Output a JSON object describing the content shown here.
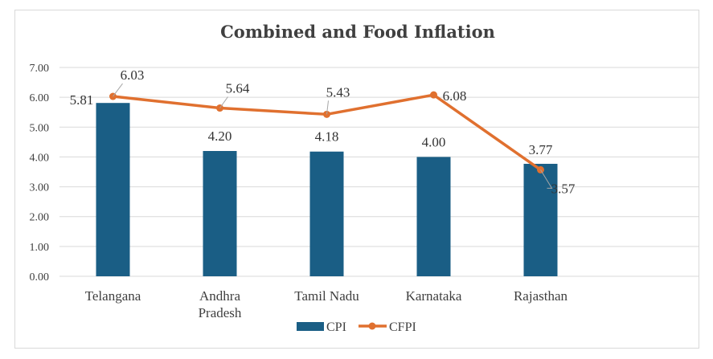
{
  "chart_data": {
    "type": "bar",
    "title": "Combined and Food Inflation",
    "categories": [
      [
        "Telangana"
      ],
      [
        "Andhra",
        "Pradesh"
      ],
      [
        "Tamil Nadu"
      ],
      [
        "Karnataka"
      ],
      [
        "Rajasthan"
      ]
    ],
    "series": [
      {
        "name": "CPI",
        "type": "bar",
        "color": "#1a5e85",
        "values": [
          5.81,
          4.2,
          4.18,
          4.0,
          3.77
        ],
        "labels": [
          "5.81",
          "4.20",
          "4.18",
          "4.00",
          "3.77"
        ]
      },
      {
        "name": "CFPI",
        "type": "line",
        "color": "#e0702f",
        "values": [
          6.03,
          5.64,
          5.43,
          6.08,
          3.57
        ],
        "labels": [
          "6.03",
          "5.64",
          "5.43",
          "6.08",
          "3.57"
        ]
      }
    ],
    "ylim": [
      0,
      7
    ],
    "yticks": [
      "0.00",
      "1.00",
      "2.00",
      "3.00",
      "4.00",
      "5.00",
      "6.00",
      "7.00"
    ],
    "grid": true,
    "legend": "bottom"
  }
}
